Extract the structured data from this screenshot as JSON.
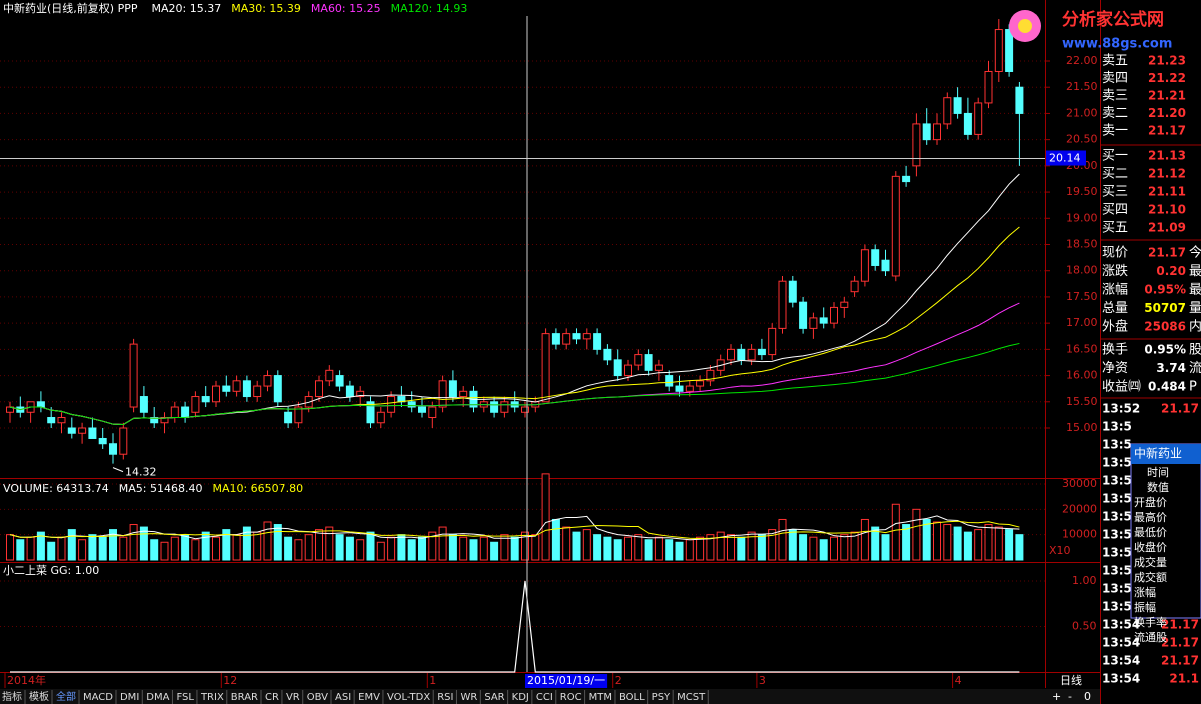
{
  "header": {
    "title": "中新药业(日线,前复权) PPP",
    "ma": [
      {
        "label": "MA20: 15.37",
        "period": 20,
        "color": "#ffffff"
      },
      {
        "label": "MA30: 15.39",
        "period": 30,
        "color": "#ffff00"
      },
      {
        "label": "MA60: 15.25",
        "period": 60,
        "color": "#ff33ff"
      },
      {
        "label": "MA120: 14.93",
        "period": 120,
        "color": "#00e600"
      }
    ]
  },
  "logo": {
    "name": "分析家公式网",
    "url": "www.88gs.com"
  },
  "price_axis": {
    "ticks": [
      {
        "value": 22,
        "label": "22.00"
      },
      {
        "value": 21.5,
        "label": "21.50"
      },
      {
        "value": 21,
        "label": "21.00"
      },
      {
        "value": 20.5,
        "label": "20.50"
      },
      {
        "value": 20,
        "label": "20.00"
      },
      {
        "value": 19.5,
        "label": "19.50"
      },
      {
        "value": 19,
        "label": "19.00"
      },
      {
        "value": 18.5,
        "label": "18.50"
      },
      {
        "value": 18,
        "label": "18.00"
      },
      {
        "value": 17.5,
        "label": "17.50"
      },
      {
        "value": 17,
        "label": "17.00"
      },
      {
        "value": 16.5,
        "label": "16.50"
      },
      {
        "value": 16,
        "label": "16.00"
      },
      {
        "value": 15.5,
        "label": "15.50"
      },
      {
        "value": 15,
        "label": "15.00"
      }
    ],
    "crosshair_price": {
      "value": 20.14,
      "label": "20.14"
    },
    "low_note": {
      "value": 14.32,
      "label": "14.32",
      "index": 10
    }
  },
  "candles": [
    [
      15.3,
      15.5,
      15.1,
      15.4
    ],
    [
      15.4,
      15.6,
      15.2,
      15.3
    ],
    [
      15.3,
      15.5,
      15.1,
      15.5
    ],
    [
      15.5,
      15.7,
      15.3,
      15.4
    ],
    [
      15.2,
      15.4,
      15.0,
      15.1
    ],
    [
      15.1,
      15.3,
      14.9,
      15.2
    ],
    [
      15.0,
      15.2,
      14.8,
      14.9
    ],
    [
      14.9,
      15.1,
      14.7,
      15.0
    ],
    [
      15.0,
      15.2,
      14.8,
      14.8
    ],
    [
      14.8,
      15.0,
      14.6,
      14.7
    ],
    [
      14.7,
      14.9,
      14.32,
      14.5
    ],
    [
      14.5,
      15.1,
      14.4,
      15.0
    ],
    [
      15.4,
      16.7,
      15.3,
      16.6
    ],
    [
      15.6,
      15.8,
      15.2,
      15.3
    ],
    [
      15.2,
      15.4,
      15.0,
      15.1
    ],
    [
      15.1,
      15.3,
      14.9,
      15.2
    ],
    [
      15.2,
      15.5,
      15.1,
      15.4
    ],
    [
      15.4,
      15.5,
      15.1,
      15.2
    ],
    [
      15.3,
      15.7,
      15.2,
      15.6
    ],
    [
      15.6,
      15.8,
      15.4,
      15.5
    ],
    [
      15.5,
      15.9,
      15.4,
      15.8
    ],
    [
      15.8,
      16.0,
      15.6,
      15.7
    ],
    [
      15.7,
      16.0,
      15.6,
      15.9
    ],
    [
      15.9,
      16.0,
      15.5,
      15.6
    ],
    [
      15.6,
      15.9,
      15.5,
      15.8
    ],
    [
      15.8,
      16.1,
      15.7,
      16.0
    ],
    [
      16.0,
      16.1,
      15.4,
      15.5
    ],
    [
      15.3,
      15.4,
      15.0,
      15.1
    ],
    [
      15.1,
      15.5,
      15.0,
      15.4
    ],
    [
      15.4,
      15.7,
      15.3,
      15.6
    ],
    [
      15.6,
      16.0,
      15.5,
      15.9
    ],
    [
      15.9,
      16.2,
      15.8,
      16.1
    ],
    [
      16.0,
      16.1,
      15.7,
      15.8
    ],
    [
      15.8,
      15.9,
      15.5,
      15.6
    ],
    [
      15.6,
      15.8,
      15.4,
      15.7
    ],
    [
      15.5,
      15.6,
      15.0,
      15.1
    ],
    [
      15.1,
      15.4,
      15.0,
      15.3
    ],
    [
      15.3,
      15.7,
      15.2,
      15.6
    ],
    [
      15.6,
      15.8,
      15.4,
      15.5
    ],
    [
      15.5,
      15.7,
      15.3,
      15.4
    ],
    [
      15.4,
      15.6,
      15.2,
      15.3
    ],
    [
      15.2,
      15.5,
      15.0,
      15.4
    ],
    [
      15.4,
      16.0,
      15.3,
      15.9
    ],
    [
      15.9,
      16.1,
      15.5,
      15.6
    ],
    [
      15.6,
      15.8,
      15.4,
      15.7
    ],
    [
      15.7,
      15.8,
      15.3,
      15.4
    ],
    [
      15.4,
      15.6,
      15.3,
      15.5
    ],
    [
      15.5,
      15.6,
      15.2,
      15.3
    ],
    [
      15.3,
      15.6,
      15.2,
      15.5
    ],
    [
      15.5,
      15.7,
      15.3,
      15.4
    ],
    [
      15.3,
      15.5,
      15.2,
      15.4
    ],
    [
      15.4,
      15.6,
      15.3,
      15.5
    ],
    [
      15.5,
      16.9,
      15.5,
      16.8
    ],
    [
      16.8,
      16.9,
      16.5,
      16.6
    ],
    [
      16.6,
      16.9,
      16.5,
      16.8
    ],
    [
      16.8,
      16.9,
      16.6,
      16.7
    ],
    [
      16.7,
      16.9,
      16.5,
      16.8
    ],
    [
      16.8,
      16.9,
      16.4,
      16.5
    ],
    [
      16.5,
      16.6,
      16.2,
      16.3
    ],
    [
      16.3,
      16.5,
      15.9,
      16.0
    ],
    [
      16.0,
      16.3,
      15.9,
      16.2
    ],
    [
      16.2,
      16.5,
      16.1,
      16.4
    ],
    [
      16.4,
      16.5,
      16.0,
      16.1
    ],
    [
      16.1,
      16.3,
      15.9,
      16.2
    ],
    [
      16.0,
      16.1,
      15.7,
      15.8
    ],
    [
      15.8,
      16.0,
      15.6,
      15.7
    ],
    [
      15.7,
      15.9,
      15.6,
      15.8
    ],
    [
      15.8,
      16.0,
      15.7,
      15.9
    ],
    [
      15.9,
      16.2,
      15.8,
      16.1
    ],
    [
      16.1,
      16.4,
      16.0,
      16.3
    ],
    [
      16.3,
      16.6,
      16.2,
      16.5
    ],
    [
      16.5,
      16.6,
      16.2,
      16.3
    ],
    [
      16.3,
      16.6,
      16.2,
      16.5
    ],
    [
      16.5,
      16.7,
      16.3,
      16.4
    ],
    [
      16.4,
      17.0,
      16.3,
      16.9
    ],
    [
      16.9,
      17.9,
      16.8,
      17.8
    ],
    [
      17.8,
      17.9,
      17.3,
      17.4
    ],
    [
      17.4,
      17.5,
      16.8,
      16.9
    ],
    [
      16.9,
      17.2,
      16.7,
      17.1
    ],
    [
      17.1,
      17.3,
      16.9,
      17.0
    ],
    [
      17.0,
      17.4,
      16.9,
      17.3
    ],
    [
      17.3,
      17.5,
      17.1,
      17.4
    ],
    [
      17.6,
      17.9,
      17.5,
      17.8
    ],
    [
      17.8,
      18.5,
      17.7,
      18.4
    ],
    [
      18.4,
      18.5,
      18.0,
      18.1
    ],
    [
      18.2,
      18.4,
      17.9,
      18.0
    ],
    [
      17.9,
      19.9,
      17.8,
      19.8
    ],
    [
      19.8,
      20.0,
      19.6,
      19.7
    ],
    [
      20.0,
      21.0,
      19.8,
      20.8
    ],
    [
      20.8,
      21.1,
      20.4,
      20.5
    ],
    [
      20.5,
      21.0,
      20.4,
      20.8
    ],
    [
      20.8,
      21.4,
      20.7,
      21.3
    ],
    [
      21.3,
      21.5,
      20.9,
      21.0
    ],
    [
      21.0,
      21.3,
      20.5,
      20.6
    ],
    [
      20.6,
      21.3,
      20.5,
      21.2
    ],
    [
      21.2,
      22.0,
      21.1,
      21.8
    ],
    [
      21.8,
      22.8,
      21.6,
      22.6
    ],
    [
      22.6,
      22.7,
      21.7,
      21.8
    ],
    [
      21.5,
      21.6,
      20.0,
      21.0
    ]
  ],
  "volume": {
    "header": [
      {
        "label": "VOLUME: 64313.74",
        "color": "#ffffff"
      },
      {
        "label": "MA5: 51468.40",
        "period": 5,
        "color": "#ffffff"
      },
      {
        "label": "MA10: 66507.80",
        "period": 10,
        "color": "#ffff00"
      }
    ],
    "ticks": [
      30000,
      20000,
      10000
    ],
    "unit": "X10",
    "values": [
      10000,
      8000,
      9000,
      11000,
      7000,
      9000,
      12000,
      8000,
      10000,
      9000,
      12000,
      9000,
      14000,
      13000,
      8000,
      7000,
      9000,
      10000,
      8000,
      11000,
      9000,
      12000,
      10000,
      13000,
      11000,
      15000,
      14000,
      9000,
      8000,
      10000,
      12000,
      13000,
      10000,
      9000,
      8000,
      11000,
      7000,
      9000,
      10000,
      8000,
      9000,
      11000,
      13000,
      10000,
      9000,
      8000,
      9000,
      7000,
      10000,
      9000,
      11000,
      10000,
      34000,
      16000,
      13000,
      11000,
      12000,
      10000,
      9000,
      8000,
      9000,
      10000,
      8000,
      9000,
      8000,
      7000,
      8000,
      9000,
      10000,
      11000,
      10000,
      9000,
      11000,
      10000,
      12000,
      16000,
      12000,
      10000,
      9000,
      8000,
      9000,
      10000,
      11000,
      16000,
      13000,
      10000,
      22000,
      14000,
      20000,
      16000,
      15000,
      14000,
      13000,
      11000,
      12000,
      14000,
      13000,
      12000,
      10000
    ]
  },
  "indicator": {
    "header": "小二上菜  GG: 1.00",
    "ticks": [
      {
        "value": 1,
        "label": "1.00"
      },
      {
        "value": 0.5,
        "label": "0.50"
      }
    ],
    "values": [
      0,
      0,
      0,
      0,
      0,
      0,
      0,
      0,
      0,
      0,
      0,
      0,
      0,
      0,
      0,
      0,
      0,
      0,
      0,
      0,
      0,
      0,
      0,
      0,
      0,
      0,
      0,
      0,
      0,
      0,
      0,
      0,
      0,
      0,
      0,
      0,
      0,
      0,
      0,
      0,
      0,
      0,
      0,
      0,
      0,
      0,
      0,
      0,
      0,
      0,
      1,
      0,
      0,
      0,
      0,
      0,
      0,
      0,
      0,
      0,
      0,
      0,
      0,
      0,
      0,
      0,
      0,
      0,
      0,
      0,
      0,
      0,
      0,
      0,
      0,
      0,
      0,
      0,
      0,
      0,
      0,
      0,
      0,
      0,
      0,
      0,
      0,
      0,
      0,
      0,
      0,
      0,
      0,
      0,
      0,
      0,
      0,
      0,
      0
    ]
  },
  "date_axis": {
    "labels": [
      {
        "text": "2014年",
        "index": 0
      },
      {
        "text": "12",
        "index": 21
      },
      {
        "text": "1",
        "index": 41
      },
      {
        "text": "2",
        "index": 59
      },
      {
        "text": "3",
        "index": 73
      },
      {
        "text": "4",
        "index": 92
      }
    ],
    "crosshair": {
      "text": "2015/01/19/一",
      "index": 50
    },
    "period": "日线"
  },
  "tabs": [
    "指标",
    "模板",
    "全部",
    "MACD",
    "DMI",
    "DMA",
    "FSL",
    "TRIX",
    "BRAR",
    "CR",
    "VR",
    "OBV",
    "ASI",
    "EMV",
    "VOL-TDX",
    "RSI",
    "WR",
    "SAR",
    "KDJ",
    "CCI",
    "ROC",
    "MTM",
    "BOLL",
    "PSY",
    "MCST"
  ],
  "zoom_buttons": [
    "+",
    "-",
    "0"
  ],
  "quote_panel": {
    "sell": [
      {
        "label": "卖五",
        "price": "21.23"
      },
      {
        "label": "卖四",
        "price": "21.22"
      },
      {
        "label": "卖三",
        "price": "21.21"
      },
      {
        "label": "卖二",
        "price": "21.20"
      },
      {
        "label": "卖一",
        "price": "21.17"
      }
    ],
    "buy": [
      {
        "label": "买一",
        "price": "21.13"
      },
      {
        "label": "买二",
        "price": "21.12"
      },
      {
        "label": "买三",
        "price": "21.11"
      },
      {
        "label": "买四",
        "price": "21.10"
      },
      {
        "label": "买五",
        "price": "21.09"
      }
    ],
    "stats": [
      {
        "label": "现价",
        "value": "21.17",
        "color": "#ff3232",
        "extra": "今"
      },
      {
        "label": "涨跌",
        "value": "0.20",
        "color": "#ff3232",
        "extra": "最"
      },
      {
        "label": "涨幅",
        "value": "0.95%",
        "color": "#ff3232",
        "extra": "最"
      },
      {
        "label": "总量",
        "value": "50707",
        "color": "#ffff00",
        "extra": "量"
      },
      {
        "label": "外盘",
        "value": "25086",
        "color": "#ff3232",
        "extra": "内"
      },
      {
        "label": "换手",
        "value": "0.95%",
        "color": "#ffffff",
        "extra": "股"
      },
      {
        "label": "净资",
        "value": "3.74",
        "color": "#ffffff",
        "extra": "流"
      },
      {
        "label": "收益㈣",
        "value": "0.484",
        "color": "#ffffff",
        "extra": "P"
      }
    ],
    "ticks": [
      {
        "time": "13:52",
        "price": "21.17"
      },
      {
        "time": "13:5"
      },
      {
        "time": "13:5"
      },
      {
        "time": "13:5"
      },
      {
        "time": "13:5"
      },
      {
        "time": "13:5"
      },
      {
        "time": "13:5"
      },
      {
        "time": "13:5"
      },
      {
        "time": "13:5"
      },
      {
        "time": "13:5"
      },
      {
        "time": "13:5"
      },
      {
        "time": "13:54",
        "price": "21.17"
      },
      {
        "time": "13:54",
        "price": "21.17"
      },
      {
        "time": "13:54",
        "price": "21.17"
      },
      {
        "time": "13:54",
        "price": "21.17"
      },
      {
        "time": "13:54",
        "price": "21.1"
      }
    ],
    "popup": {
      "title": "中新药业",
      "fields": [
        "时间",
        "数值",
        "开盘价",
        "最高价",
        "最低价",
        "收盘价",
        "成交量",
        "成交额",
        "涨幅",
        "振幅",
        "换手率",
        "流通股"
      ]
    }
  }
}
